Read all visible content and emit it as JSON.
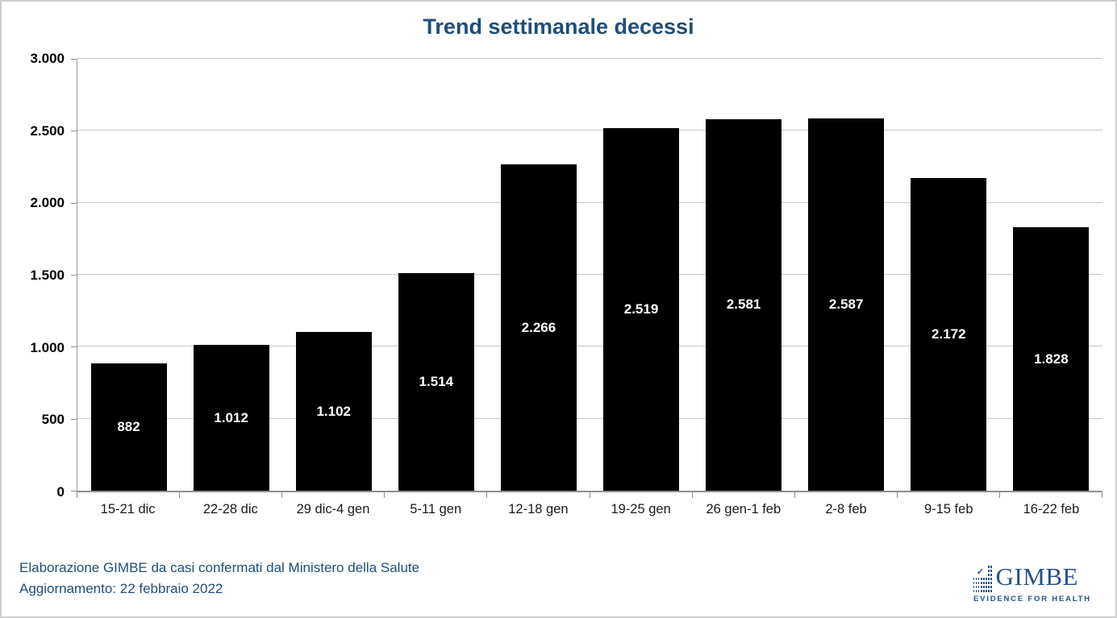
{
  "title": "Trend settimanale decessi",
  "chart_data": {
    "type": "bar",
    "title": "Trend settimanale decessi",
    "categories": [
      "15-21 dic",
      "22-28 dic",
      "29 dic-4 gen",
      "5-11 gen",
      "12-18 gen",
      "19-25 gen",
      "26 gen-1 feb",
      "2-8 feb",
      "9-15 feb",
      "16-22 feb"
    ],
    "values": [
      882,
      1012,
      1102,
      1514,
      2266,
      2519,
      2581,
      2587,
      2172,
      1828
    ],
    "value_labels": [
      "882",
      "1.012",
      "1.102",
      "1.514",
      "2.266",
      "2.519",
      "2.581",
      "2.587",
      "2.172",
      "1.828"
    ],
    "y_tick_labels": [
      "0",
      "500",
      "1.000",
      "1.500",
      "2.000",
      "2.500",
      "3.000"
    ],
    "y_tick_values": [
      0,
      500,
      1000,
      1500,
      2000,
      2500,
      3000
    ],
    "ylim": [
      0,
      3000
    ],
    "xlabel": "",
    "ylabel": "",
    "grid": true,
    "legend": false,
    "bar_color": "#000000",
    "bar_label_color": "#FFFFFF",
    "title_color": "#1F4E79",
    "gridline_color": "#c8c8c8"
  },
  "footer": {
    "source": "Elaborazione GIMBE da casi confermati dal Ministero della Salute",
    "update": "Aggiornamento: 22 febbraio 2022"
  },
  "logo": {
    "name": "GIMBE",
    "tagline": "EVIDENCE FOR HEALTH",
    "check_icon": "✓",
    "brand_color": "#24518B"
  }
}
